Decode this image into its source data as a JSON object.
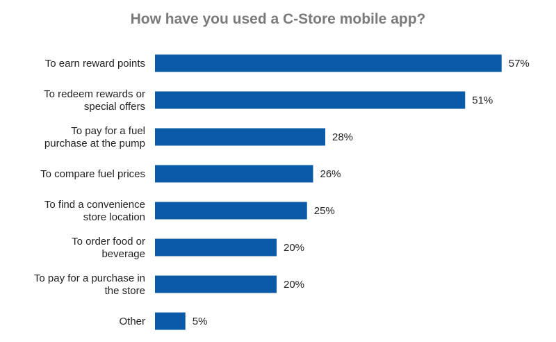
{
  "chart_data": {
    "type": "bar",
    "orientation": "horizontal",
    "title": "How have you used a C-Store mobile app?",
    "categories": [
      [
        "To earn reward points"
      ],
      [
        "To redeem rewards or",
        "special offers"
      ],
      [
        "To pay for a fuel",
        "purchase at the pump"
      ],
      [
        "To compare fuel prices"
      ],
      [
        "To find a convenience",
        "store location"
      ],
      [
        "To order food or",
        "beverage"
      ],
      [
        "To pay for a purchase in",
        "the store"
      ],
      [
        "Other"
      ]
    ],
    "values": [
      57,
      51,
      28,
      26,
      25,
      20,
      20,
      5
    ],
    "value_labels": [
      "57%",
      "51%",
      "28%",
      "26%",
      "25%",
      "20%",
      "20%",
      "5%"
    ],
    "xlim": [
      0,
      100
    ],
    "grid": false,
    "legend": "none",
    "colors": {
      "bar": "#0b5aa7",
      "title": "#7a7a7a",
      "text": "#222222"
    }
  }
}
